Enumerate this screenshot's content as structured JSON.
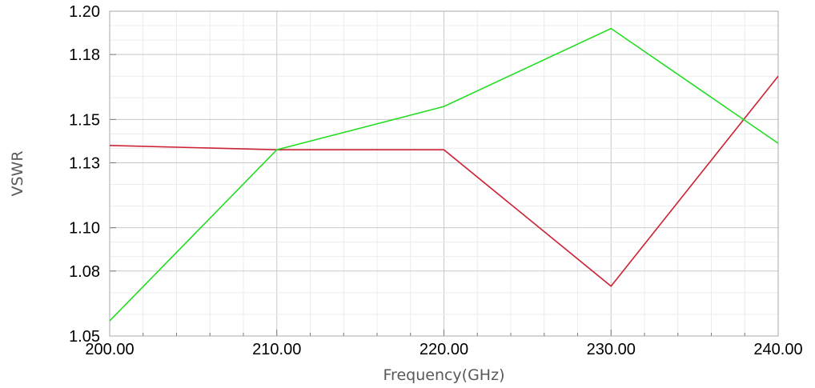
{
  "chart_data": {
    "type": "line",
    "title": "",
    "xlabel": "Frequency(GHz)",
    "ylabel": "VSWR",
    "x": [
      200,
      210,
      220,
      230,
      240
    ],
    "xlim": [
      200,
      240
    ],
    "ylim": [
      1.05,
      1.2
    ],
    "x_tick_values": [
      200,
      210,
      220,
      230,
      240
    ],
    "x_tick_labels": [
      "200.00",
      "210.00",
      "220.00",
      "230.00",
      "240.00"
    ],
    "y_tick_values": [
      1.05,
      1.08,
      1.1,
      1.13,
      1.15,
      1.18,
      1.2
    ],
    "y_tick_labels": [
      "1.05",
      "1.08",
      "1.10",
      "1.13",
      "1.15",
      "1.18",
      "1.20"
    ],
    "grid": true,
    "legend": "none",
    "series": [
      {
        "color": "#cc2233",
        "values": [
          1.138,
          1.136,
          1.136,
          1.073,
          1.17
        ]
      },
      {
        "color": "#22dd22",
        "values": [
          1.057,
          1.136,
          1.156,
          1.192,
          1.139
        ]
      }
    ]
  }
}
